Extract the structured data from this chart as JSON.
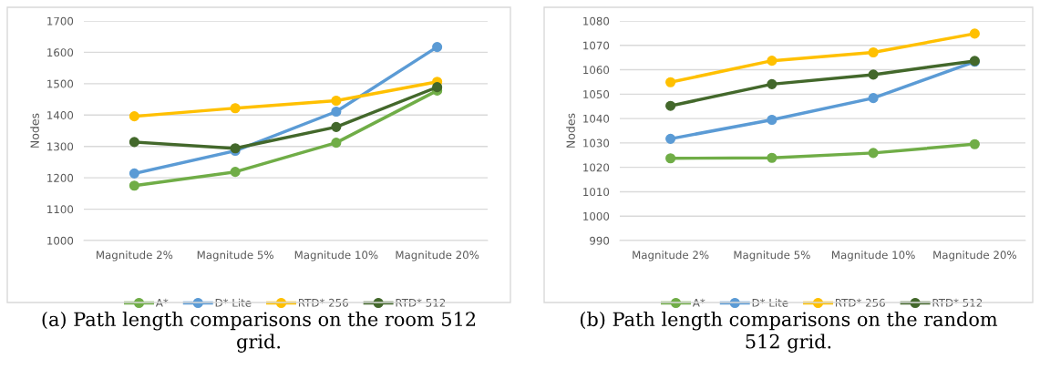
{
  "chart_data": [
    {
      "type": "line",
      "ylabel": "Nodes",
      "categories": [
        "Magnitude 2%",
        "Magnitude 5%",
        "Magnitude 10%",
        "Magnitude 20%"
      ],
      "ylim": [
        1000,
        1700
      ],
      "yticks": [
        1000,
        1100,
        1200,
        1300,
        1400,
        1500,
        1600,
        1700
      ],
      "grid": "y",
      "legend": "bottom",
      "marker": "circle",
      "line_style": "solid",
      "series": [
        {
          "name": "A*",
          "color": "#70ad47",
          "values": [
            1175,
            1219,
            1312,
            1478
          ]
        },
        {
          "name": "D* Lite",
          "color": "#5b9bd5",
          "values": [
            1214,
            1286,
            1411,
            1617
          ]
        },
        {
          "name": "RTD* 256",
          "color": "#ffc000",
          "values": [
            1396,
            1422,
            1446,
            1506
          ]
        },
        {
          "name": "RTD* 512",
          "color": "#43682b",
          "values": [
            1314,
            1294,
            1362,
            1489
          ]
        }
      ],
      "annotations": [
        "(a) Path length comparisons on the room 512\ngrid."
      ]
    },
    {
      "type": "line",
      "ylabel": "Nodes",
      "categories": [
        "Magnitude 2%",
        "Magnitude 5%",
        "Magnitude 10%",
        "Magnitude 20%"
      ],
      "ylim": [
        990,
        1080
      ],
      "yticks": [
        990,
        1000,
        1010,
        1020,
        1030,
        1040,
        1050,
        1060,
        1070,
        1080
      ],
      "grid": "y",
      "legend": "bottom",
      "marker": "circle",
      "line_style": "solid",
      "series": [
        {
          "name": "A*",
          "color": "#70ad47",
          "values": [
            1023.7,
            1023.9,
            1025.9,
            1029.5
          ]
        },
        {
          "name": "D* Lite",
          "color": "#5b9bd5",
          "values": [
            1031.7,
            1039.5,
            1048.4,
            1063.3
          ]
        },
        {
          "name": "RTD* 256",
          "color": "#ffc000",
          "values": [
            1054.9,
            1063.7,
            1067.1,
            1074.8
          ]
        },
        {
          "name": "RTD* 512",
          "color": "#43682b",
          "values": [
            1045.2,
            1054.1,
            1058.0,
            1063.6
          ]
        }
      ],
      "annotations": [
        "(b) Path length comparisons on the random\n512 grid."
      ]
    }
  ]
}
